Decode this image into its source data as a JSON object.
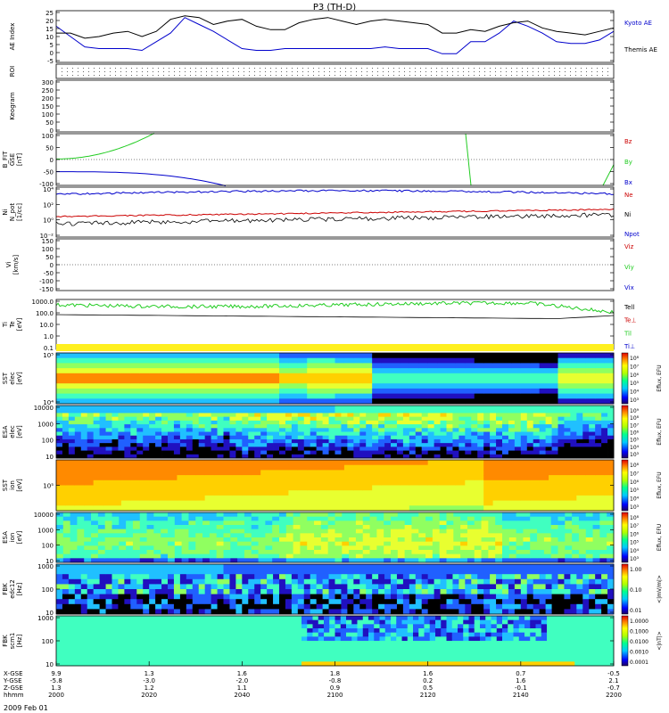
{
  "title": "P3 (TH-D)",
  "date_label": "2009 Feb 01",
  "chart_data": [
    {
      "type": "line",
      "ylabel": "AE Index",
      "ylim": [
        -5,
        25
      ],
      "yticks": [
        "25",
        "20",
        "15",
        "10",
        "5",
        "0",
        "-5"
      ],
      "series": [
        {
          "name": "Kyoto AE",
          "color": "#0000cc",
          "values": [
            16,
            10,
            4,
            3,
            3,
            3,
            2,
            7,
            12,
            21,
            17,
            13,
            8,
            3,
            2,
            2,
            3,
            3,
            3,
            3,
            3,
            3,
            3,
            4,
            3,
            3,
            3,
            0,
            0,
            7,
            7,
            12,
            19,
            16,
            12,
            7,
            6,
            6,
            8,
            13
          ]
        },
        {
          "name": "Themis AE",
          "color": "#000000",
          "values": [
            12,
            12,
            9,
            10,
            12,
            13,
            10,
            13,
            20,
            22,
            21,
            17,
            19,
            20,
            16,
            14,
            14,
            18,
            20,
            21,
            19,
            17,
            19,
            20,
            19,
            18,
            17,
            12,
            12,
            14,
            13,
            16,
            18,
            19,
            15,
            13,
            12,
            11,
            13,
            15
          ]
        }
      ]
    },
    {
      "type": "table",
      "ylabel": "ROI"
    },
    {
      "type": "table",
      "ylabel": "Keogram",
      "ylim": [
        0,
        300
      ],
      "yticks": [
        "300",
        "250",
        "200",
        "150",
        "100",
        "50",
        "0"
      ]
    },
    {
      "type": "line",
      "ylabel": "B_FIT\nGSE\n[nT]",
      "ylim": [
        -100,
        100
      ],
      "yticks": [
        "100",
        "50",
        "0",
        "-50",
        "-100"
      ],
      "series": [
        {
          "name": "Bz",
          "color": "#cc0000"
        },
        {
          "name": "By",
          "color": "#22cc22"
        },
        {
          "name": "Bx",
          "color": "#0000cc"
        }
      ]
    },
    {
      "type": "line",
      "ylabel": "Ni\nN_pot\n[1/cc]",
      "yticks": [
        "10⁴",
        "10²",
        "10⁰",
        "10⁻²"
      ],
      "series": [
        {
          "name": "Ne",
          "color": "#cc0000"
        },
        {
          "name": "Ni",
          "color": "#000000"
        },
        {
          "name": "Npot",
          "color": "#0000cc"
        }
      ]
    },
    {
      "type": "line",
      "ylabel": "Vi\n[km/s]",
      "ylim": [
        -150,
        150
      ],
      "yticks": [
        "150",
        "100",
        "50",
        "0",
        "-50",
        "-100",
        "-150"
      ],
      "series": [
        {
          "name": "Viz",
          "color": "#cc0000"
        },
        {
          "name": "Viy",
          "color": "#22cc22"
        },
        {
          "name": "Vix",
          "color": "#0000cc"
        }
      ]
    },
    {
      "type": "line",
      "ylabel": "Ti\nTe\n[eV]",
      "yticks": [
        "1000.0",
        "100.0",
        "10.0",
        "1.0",
        "0.1"
      ],
      "series": [
        {
          "name": "Tell",
          "color": "#000000"
        },
        {
          "name": "Te⊥",
          "color": "#cc0000"
        },
        {
          "name": "Til",
          "color": "#22cc22"
        },
        {
          "name": "Ti⊥",
          "color": "#0000cc"
        }
      ]
    },
    {
      "type": "heatmap",
      "ylabel": "SST\nelec\n[eV]",
      "yticks": [
        "10⁵",
        "10⁴"
      ],
      "colorbar": [
        "10⁸",
        "10⁷",
        "10⁶",
        "10⁵",
        "10⁴",
        "10³"
      ],
      "cblabel": "Eflux, EFU"
    },
    {
      "type": "heatmap",
      "ylabel": "ESA\nelec\n[eV]",
      "yticks": [
        "10000",
        "1000",
        "100",
        "10"
      ],
      "colorbar": [
        "10⁹",
        "10⁸",
        "10⁷",
        "10⁶",
        "10⁵",
        "10⁴",
        "10³"
      ],
      "cblabel": "Eflux, EFU"
    },
    {
      "type": "heatmap",
      "ylabel": "SST\nion\n[eV]",
      "yticks": [
        "10⁵"
      ],
      "colorbar": [
        "10⁸",
        "10⁷",
        "10⁶",
        "10⁵",
        "10⁴",
        "10³"
      ],
      "cblabel": "Eflux, EFU"
    },
    {
      "type": "heatmap",
      "ylabel": "ESA\nion\n[eV]",
      "yticks": [
        "10000",
        "1000",
        "100",
        "10"
      ],
      "colorbar": [
        "10⁸",
        "10⁷",
        "10⁶",
        "10⁵",
        "10⁴",
        "10³"
      ],
      "cblabel": "Eflux, EFU"
    },
    {
      "type": "heatmap",
      "ylabel": "FBK\nedc12\n[Hz]",
      "yticks": [
        "1000",
        "100",
        "10"
      ],
      "colorbar": [
        "1.00",
        "0.10",
        "0.01"
      ],
      "cblabel": "<|mV/m|>"
    },
    {
      "type": "heatmap",
      "ylabel": "FBK\nscm1\n[Hz]",
      "yticks": [
        "1000",
        "100",
        "10"
      ],
      "colorbar": [
        "1.0000",
        "0.1000",
        "0.0100",
        "0.0010",
        "0.0001"
      ],
      "cblabel": "<|nT|>"
    }
  ],
  "x_axis": {
    "row_labels": [
      "X-GSE",
      "Y-GSE",
      "Z-GSE",
      "hhmm"
    ],
    "columns": [
      [
        "9.9",
        "-5.8",
        "1.3",
        "2000"
      ],
      [
        "1.3",
        "-3.0",
        "1.2",
        "2020"
      ],
      [
        "1.6",
        "-2.0",
        "1.1",
        "2040"
      ],
      [
        "1.8",
        "-0.8",
        "0.9",
        "2100"
      ],
      [
        "1.6",
        "0.2",
        "0.5",
        "2120"
      ],
      [
        "0.7",
        "1.6",
        "-0.1",
        "2140"
      ],
      [
        "-0.5",
        "2.1",
        "-0.7",
        "2200"
      ]
    ]
  }
}
